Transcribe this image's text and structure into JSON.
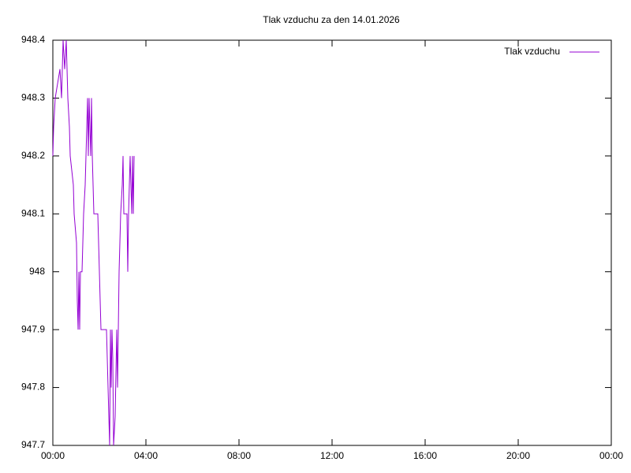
{
  "chart_data": {
    "type": "line",
    "title": "Tlak vzduchu za den 14.01.2026",
    "x": [
      0,
      0.034,
      0.102,
      0.305,
      0.373,
      0.441,
      0.508,
      0.576,
      0.61,
      0.644,
      0.712,
      0.746,
      0.881,
      0.915,
      1.017,
      1.051,
      1.085,
      1.119,
      1.153,
      1.186,
      1.254,
      1.288,
      1.322,
      1.39,
      1.458,
      1.492,
      1.525,
      1.559,
      1.627,
      1.661,
      1.695,
      1.729,
      1.763,
      1.932,
      1.966,
      2.0,
      2.068,
      2.305,
      2.339,
      2.373,
      2.407,
      2.441,
      2.475,
      2.508,
      2.542,
      2.576,
      2.61,
      2.678,
      2.746,
      2.78,
      2.814,
      2.847,
      2.915,
      2.983,
      3.017,
      3.051,
      3.186,
      3.22,
      3.254,
      3.322,
      3.356,
      3.39,
      3.424,
      3.458,
      3.492
    ],
    "series": [
      {
        "name": "Tlak vzduchu",
        "color": "#9400d3",
        "values": [
          948.2,
          948.25,
          948.3,
          948.35,
          948.3,
          948.4,
          948.35,
          948.4,
          948.35,
          948.3,
          948.25,
          948.2,
          948.15,
          948.1,
          948.05,
          947.95,
          947.9,
          948,
          947.9,
          948,
          948,
          948.05,
          948.1,
          948.15,
          948.25,
          948.3,
          948.2,
          948.3,
          948.2,
          948.3,
          948.2,
          948.15,
          948.1,
          948.1,
          948.05,
          948,
          947.9,
          947.9,
          947.85,
          947.8,
          947.75,
          947.7,
          947.9,
          947.8,
          947.9,
          947.85,
          947.7,
          947.75,
          947.9,
          947.8,
          947.9,
          948,
          948.1,
          948.15,
          948.2,
          948.1,
          948.1,
          948,
          948.1,
          948.2,
          948.15,
          948.1,
          948.2,
          948.1,
          948.2
        ]
      }
    ],
    "xlim": [
      0,
      24
    ],
    "xticks": [
      {
        "value": 0,
        "label": "00:00"
      },
      {
        "value": 4,
        "label": "04:00"
      },
      {
        "value": 8,
        "label": "08:00"
      },
      {
        "value": 12,
        "label": "12:00"
      },
      {
        "value": 16,
        "label": "16:00"
      },
      {
        "value": 20,
        "label": "20:00"
      },
      {
        "value": 24,
        "label": "00:00"
      }
    ],
    "ylim": [
      947.7,
      948.4
    ],
    "yticks": [
      947.7,
      947.8,
      947.9,
      948,
      948.1,
      948.2,
      948.3,
      948.4
    ],
    "grid": false,
    "legend": "top-right"
  }
}
